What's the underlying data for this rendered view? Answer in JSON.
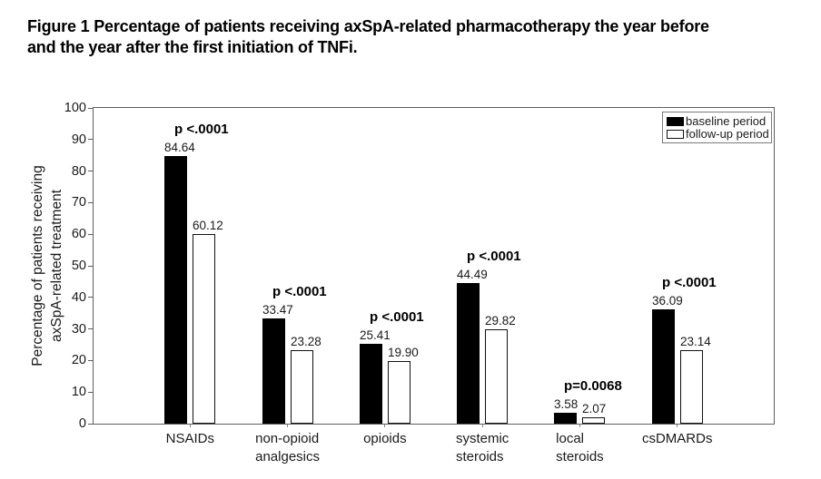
{
  "figure": {
    "title_lines": [
      "Figure 1 Percentage of patients receiving axSpA-related pharmacotherapy the year before",
      "and the year after the first initiation of TNFi."
    ]
  },
  "chart_data": {
    "type": "bar",
    "categories": [
      [
        "NSAIDs"
      ],
      [
        "non-opioid",
        "analgesics"
      ],
      [
        "opioids"
      ],
      [
        "systemic",
        "steroids"
      ],
      [
        "local",
        "steroids"
      ],
      [
        "csDMARDs"
      ]
    ],
    "series": [
      {
        "name": "baseline period",
        "fill": "#000000",
        "values": [
          84.64,
          33.47,
          25.41,
          44.49,
          3.58,
          36.09
        ],
        "labels": [
          "84.64",
          "33.47",
          "25.41",
          "44.49",
          "3.58",
          "36.09"
        ]
      },
      {
        "name": "follow-up period",
        "fill": "#ffffff",
        "values": [
          60.12,
          23.28,
          19.9,
          29.82,
          2.07,
          23.14
        ],
        "labels": [
          "60.12",
          "23.28",
          "19.90",
          "29.82",
          "2.07",
          "23.14"
        ]
      }
    ],
    "p_values": [
      "p <.0001",
      "p <.0001",
      "p <.0001",
      "p <.0001",
      "p=0.0068",
      "p <.0001"
    ],
    "ylabel": [
      "Percentage of patients receiving",
      "axSpA-related treatment"
    ],
    "yticks": [
      "0",
      "10",
      "20",
      "30",
      "40",
      "50",
      "60",
      "70",
      "80",
      "90",
      "100"
    ],
    "ylim": [
      0,
      100
    ],
    "ytick_step": 10,
    "grid": false,
    "legend_position": "top-right",
    "colors": {
      "axis": "#5f5f5f",
      "bar_baseline": "#000000",
      "bar_followup": "#ffffff",
      "text": "#000000"
    }
  }
}
